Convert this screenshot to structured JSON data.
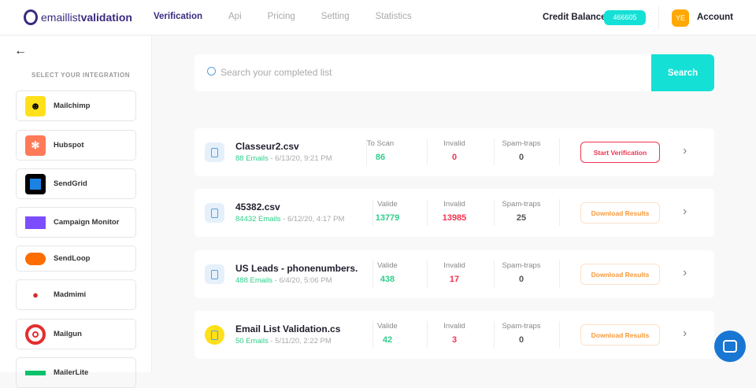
{
  "header": {
    "logo_prefix": "emaillist",
    "logo_bold": "validation",
    "nav": [
      "Verification",
      "Api",
      "Pricing",
      "Setting",
      "Statistics"
    ],
    "active_nav": "Verification",
    "credit_label": "Credit Balance",
    "credit_value": "466605",
    "avatar_initials": "YE",
    "account_label": "Account"
  },
  "sidebar": {
    "heading": "SELECT YOUR INTEGRATION",
    "items": [
      {
        "label": "Mailchimp",
        "color": "#ffe01b"
      },
      {
        "label": "Hubspot",
        "color": "#ff7a59"
      },
      {
        "label": "SendGrid",
        "color": "#000000"
      },
      {
        "label": "Campaign Monitor",
        "color": "#7c4dff"
      },
      {
        "label": "SendLoop",
        "color": "#ff6d00"
      },
      {
        "label": "Madmimi",
        "color": "#ffffff"
      },
      {
        "label": "Mailgun",
        "color": "#e32e2e"
      },
      {
        "label": "MailerLite",
        "color": "#09c269"
      }
    ]
  },
  "search": {
    "placeholder": "Search your completed list",
    "button": "Search"
  },
  "lists": [
    {
      "name": "Classeur2.csv",
      "emails": "88 Emails",
      "date": " - 6/13/20, 9:21 PM",
      "stat1_label": "To Scan",
      "stat1": "86",
      "invalid_label": "Invalid",
      "invalid": "0",
      "spam_label": "Spam-traps",
      "spam": "0",
      "action": "Start Verification",
      "icon": "file-icon"
    },
    {
      "name": "45382.csv",
      "emails": "84432 Emails",
      "date": " - 6/12/20, 4:17 PM",
      "stat1_label": "Valide",
      "stat1": "13779",
      "invalid_label": "Invalid",
      "invalid": "13985",
      "spam_label": "Spam-traps",
      "spam": "25",
      "action": "Download Results",
      "icon": "file-icon"
    },
    {
      "name": "US Leads - phonenumbers.",
      "emails": "488 Emails",
      "date": " - 6/4/20, 5:06 PM",
      "stat1_label": "Valide",
      "stat1": "438",
      "invalid_label": "Invalid",
      "invalid": "17",
      "spam_label": "Spam-traps",
      "spam": "0",
      "action": "Download Results",
      "icon": "file-icon"
    },
    {
      "name": "Email List Validation.cs",
      "emails": "50 Emails",
      "date": " - 5/11/20, 2:22 PM",
      "stat1_label": "Valide",
      "stat1": "42",
      "invalid_label": "Invalid",
      "invalid": "3",
      "spam_label": "Spam-traps",
      "spam": "0",
      "action": "Download Results",
      "icon": "mailchimp-icon"
    }
  ],
  "colors": {
    "accent": "#15e0d6",
    "brand": "#3b2a80",
    "valid": "#2ecf8a",
    "invalid": "#f0344f"
  }
}
